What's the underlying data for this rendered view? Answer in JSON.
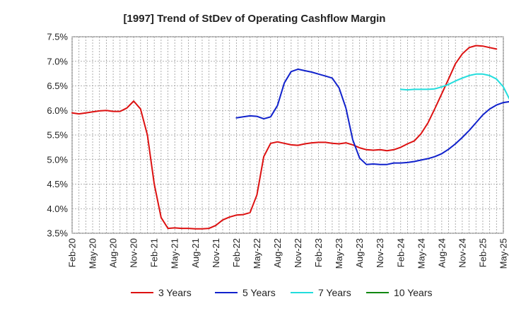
{
  "chart_data": {
    "type": "line",
    "title": "[1997]  Trend of StDev of Operating Cashflow Margin",
    "xlabel": "",
    "ylabel": "",
    "ylim": [
      3.5,
      7.5
    ],
    "yticks": [
      "3.5%",
      "4.0%",
      "4.5%",
      "5.0%",
      "5.5%",
      "6.0%",
      "6.5%",
      "7.0%",
      "7.5%"
    ],
    "xticks": [
      "Feb-20",
      "May-20",
      "Aug-20",
      "Nov-20",
      "Feb-21",
      "May-21",
      "Aug-21",
      "Nov-21",
      "Feb-22",
      "May-22",
      "Aug-22",
      "Nov-22",
      "Feb-23",
      "May-23",
      "Aug-23",
      "Nov-23",
      "Feb-24",
      "May-24",
      "Aug-24",
      "Nov-24",
      "Feb-25",
      "May-25"
    ],
    "grid": true,
    "legend_position": "bottom",
    "x_start": "Feb-20",
    "x_end": "May-25",
    "series": [
      {
        "name": "3 Years",
        "color": "#dd1111",
        "start": "Feb-20",
        "values": [
          5.95,
          5.93,
          5.95,
          5.97,
          5.99,
          6.0,
          5.98,
          5.98,
          6.05,
          6.19,
          6.03,
          5.5,
          4.5,
          3.82,
          3.6,
          3.61,
          3.6,
          3.6,
          3.59,
          3.59,
          3.6,
          3.66,
          3.77,
          3.83,
          3.87,
          3.88,
          3.92,
          4.28,
          5.06,
          5.33,
          5.36,
          5.33,
          5.3,
          5.29,
          5.32,
          5.34,
          5.35,
          5.35,
          5.33,
          5.32,
          5.34,
          5.3,
          5.24,
          5.2,
          5.19,
          5.2,
          5.18,
          5.2,
          5.25,
          5.32,
          5.38,
          5.53,
          5.75,
          6.04,
          6.34,
          6.64,
          6.95,
          7.15,
          7.28,
          7.32,
          7.31,
          7.28,
          7.25
        ]
      },
      {
        "name": "5 Years",
        "color": "#1122cc",
        "start": "Feb-22",
        "values": [
          5.85,
          5.87,
          5.89,
          5.88,
          5.83,
          5.87,
          6.1,
          6.56,
          6.79,
          6.84,
          6.81,
          6.78,
          6.74,
          6.7,
          6.66,
          6.46,
          6.05,
          5.4,
          5.03,
          4.9,
          4.91,
          4.9,
          4.9,
          4.93,
          4.93,
          4.94,
          4.96,
          4.99,
          5.02,
          5.06,
          5.12,
          5.21,
          5.32,
          5.45,
          5.59,
          5.75,
          5.91,
          6.03,
          6.11,
          6.16,
          6.18,
          6.18,
          6.18
        ]
      },
      {
        "name": "7 Years",
        "color": "#22dddd",
        "start": "Feb-24",
        "values": [
          6.43,
          6.42,
          6.43,
          6.43,
          6.43,
          6.44,
          6.48,
          6.53,
          6.6,
          6.66,
          6.71,
          6.74,
          6.74,
          6.71,
          6.64,
          6.48,
          6.2,
          5.72
        ]
      },
      {
        "name": "10 Years",
        "color": "#118811",
        "start": "Feb-25",
        "values": []
      }
    ]
  }
}
